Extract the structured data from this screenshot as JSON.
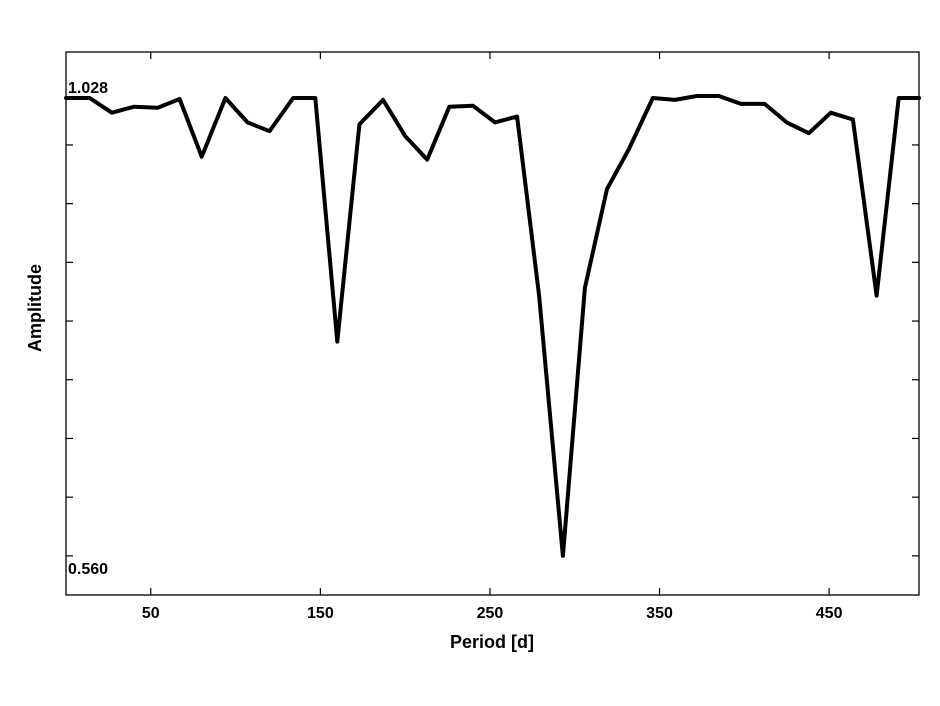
{
  "chart_data": {
    "type": "line",
    "title": "",
    "xlabel": "Period [d]",
    "ylabel": "Amplitude",
    "xlim": [
      0,
      503
    ],
    "ylim": [
      0.52,
      1.075
    ],
    "x_ticks": [
      50,
      150,
      250,
      350,
      450
    ],
    "x_tick_labels": [
      "50",
      "150",
      "250",
      "350",
      "450"
    ],
    "y_ticks": [
      0.56,
      0.62,
      0.68,
      0.74,
      0.8,
      0.86,
      0.92,
      0.98,
      1.028
    ],
    "y_tick_labels": [
      "0.560",
      "",
      "",
      "",
      "",
      "",
      "",
      "",
      "1.028"
    ],
    "grid": false,
    "legend": false,
    "series": [
      {
        "color": "#000000",
        "x": [
          0,
          14,
          27,
          40,
          54,
          67,
          80,
          94,
          107,
          120,
          134,
          147,
          160,
          173,
          187,
          200,
          213,
          226,
          240,
          253,
          266,
          279,
          293,
          306,
          319,
          332,
          346,
          359,
          372,
          385,
          398,
          412,
          425,
          438,
          451,
          464,
          478,
          491,
          503
        ],
        "values": [
          1.028,
          1.028,
          1.013,
          1.019,
          1.018,
          1.027,
          0.968,
          1.028,
          1.003,
          0.994,
          1.028,
          1.028,
          0.779,
          1.001,
          1.026,
          0.989,
          0.965,
          1.019,
          1.02,
          1.003,
          1.009,
          0.826,
          0.56,
          0.834,
          0.935,
          0.976,
          1.028,
          1.026,
          1.03,
          1.03,
          1.022,
          1.022,
          1.003,
          0.992,
          1.013,
          1.006,
          0.826,
          1.028,
          1.028
        ]
      }
    ]
  }
}
